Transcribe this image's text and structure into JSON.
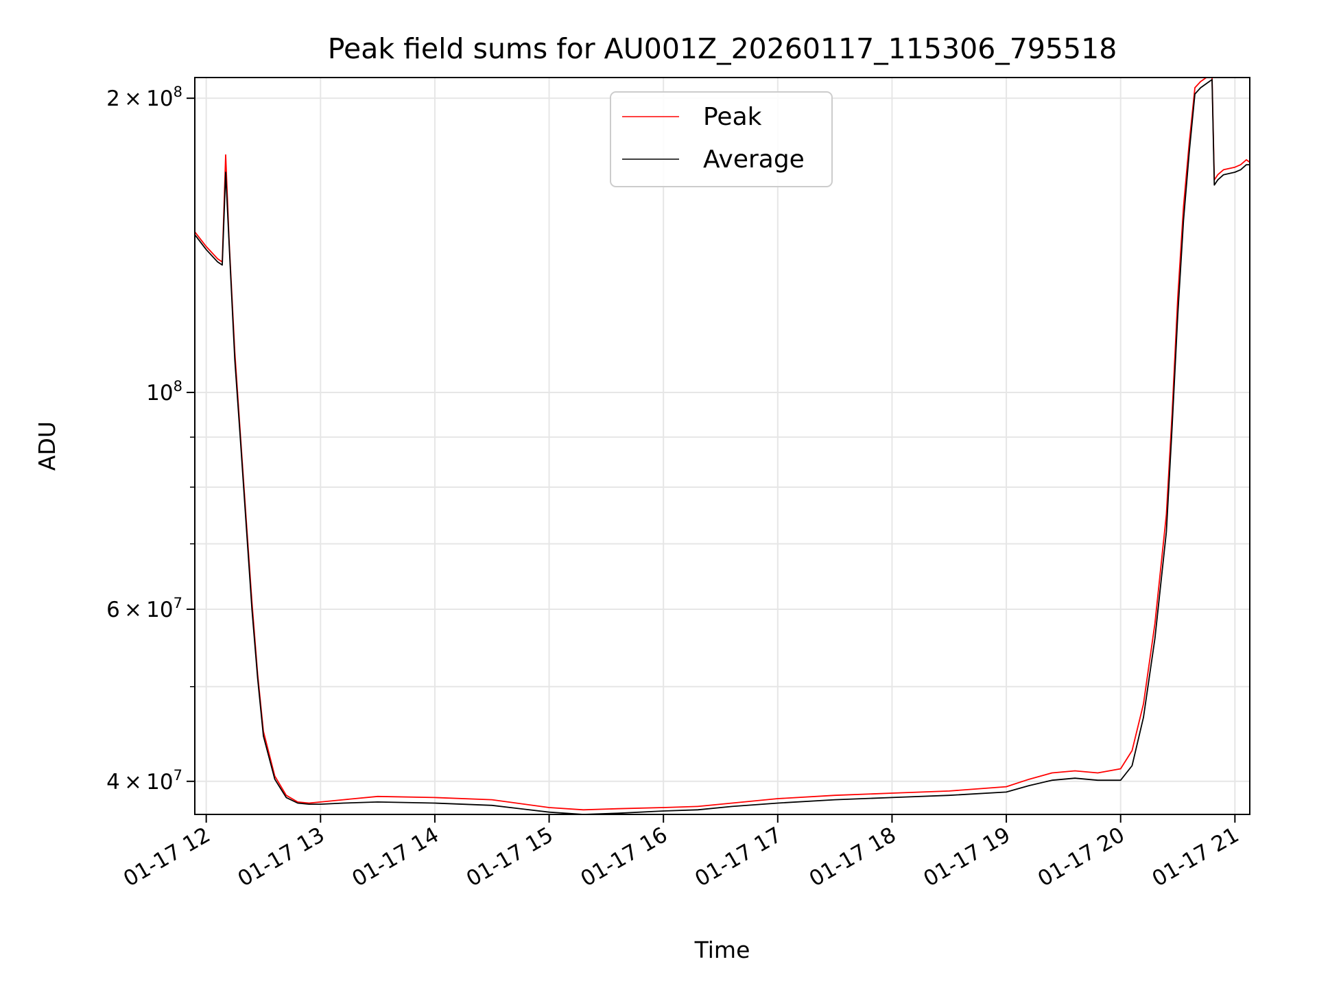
{
  "chart_data": {
    "type": "line",
    "title": "Peak field sums for AU001Z_20260117_115306_795518",
    "xlabel": "Time",
    "ylabel": "ADU",
    "yscale": "log",
    "xlim": [
      11.9,
      21.13
    ],
    "ylim": [
      37000000,
      210000000
    ],
    "grid": true,
    "legend_position": "top-center",
    "x_tick_values": [
      12,
      13,
      14,
      15,
      16,
      17,
      18,
      19,
      20,
      21
    ],
    "x_tick_labels": [
      "01-17 12",
      "01-17 13",
      "01-17 14",
      "01-17 15",
      "01-17 16",
      "01-17 17",
      "01-17 18",
      "01-17 19",
      "01-17 20",
      "01-17 21"
    ],
    "y_major_ticks": [
      {
        "value": 40000000,
        "mantissa": "4",
        "exponent": "7"
      },
      {
        "value": 60000000,
        "mantissa": "6",
        "exponent": "7"
      },
      {
        "value": 100000000,
        "mantissa": "",
        "exponent": "8"
      },
      {
        "value": 200000000,
        "mantissa": "2",
        "exponent": "8"
      }
    ],
    "y_minor_grid": [
      50000000,
      70000000,
      80000000,
      90000000
    ],
    "series": [
      {
        "name": "Peak",
        "color": "#ff0000",
        "x": [
          11.9,
          12.0,
          12.1,
          12.14,
          12.17,
          12.2,
          12.25,
          12.3,
          12.35,
          12.4,
          12.45,
          12.5,
          12.6,
          12.7,
          12.8,
          12.9,
          13.0,
          13.2,
          13.5,
          14.0,
          14.5,
          15.0,
          15.3,
          15.6,
          16.0,
          16.3,
          16.6,
          17.0,
          17.5,
          18.0,
          18.5,
          19.0,
          19.2,
          19.4,
          19.6,
          19.8,
          20.0,
          20.1,
          20.2,
          20.3,
          20.4,
          20.45,
          20.5,
          20.55,
          20.6,
          20.65,
          20.7,
          20.75,
          20.8,
          20.82,
          20.85,
          20.9,
          21.0,
          21.05,
          21.1,
          21.13
        ],
        "y": [
          146000000,
          141000000,
          137000000,
          136000000,
          175000000,
          143000000,
          110000000,
          90000000,
          74000000,
          61000000,
          51500000,
          45000000,
          40500000,
          38700000,
          38100000,
          38000000,
          38100000,
          38300000,
          38600000,
          38500000,
          38300000,
          37600000,
          37400000,
          37500000,
          37600000,
          37700000,
          38000000,
          38400000,
          38700000,
          38900000,
          39100000,
          39500000,
          40200000,
          40800000,
          41000000,
          40800000,
          41200000,
          43000000,
          48000000,
          58000000,
          75000000,
          95000000,
          125000000,
          155000000,
          180000000,
          205000000,
          208000000,
          210000000,
          212000000,
          165000000,
          167000000,
          169000000,
          170000000,
          171000000,
          173000000,
          172000000
        ]
      },
      {
        "name": "Average",
        "color": "#000000",
        "x": [
          11.9,
          12.0,
          12.1,
          12.14,
          12.17,
          12.2,
          12.25,
          12.3,
          12.35,
          12.4,
          12.45,
          12.5,
          12.6,
          12.7,
          12.8,
          12.9,
          13.0,
          13.2,
          13.5,
          14.0,
          14.5,
          15.0,
          15.3,
          15.6,
          16.0,
          16.3,
          16.6,
          17.0,
          17.5,
          18.0,
          18.5,
          19.0,
          19.2,
          19.4,
          19.6,
          19.8,
          20.0,
          20.1,
          20.2,
          20.3,
          20.4,
          20.45,
          20.5,
          20.55,
          20.6,
          20.65,
          20.7,
          20.75,
          20.8,
          20.82,
          20.85,
          20.9,
          21.0,
          21.05,
          21.1,
          21.13
        ],
        "y": [
          145000000,
          140000000,
          136000000,
          135000000,
          168000000,
          142000000,
          108000000,
          89000000,
          73000000,
          60000000,
          51000000,
          44500000,
          40200000,
          38500000,
          38000000,
          37900000,
          37900000,
          38000000,
          38100000,
          38000000,
          37800000,
          37200000,
          37000000,
          37100000,
          37300000,
          37400000,
          37700000,
          38000000,
          38300000,
          38500000,
          38700000,
          39000000,
          39600000,
          40100000,
          40300000,
          40100000,
          40100000,
          41500000,
          46500000,
          56000000,
          72000000,
          92000000,
          120000000,
          150000000,
          176000000,
          202000000,
          205000000,
          207000000,
          209000000,
          163000000,
          165000000,
          167000000,
          168000000,
          169000000,
          171000000,
          171000000
        ]
      }
    ]
  }
}
